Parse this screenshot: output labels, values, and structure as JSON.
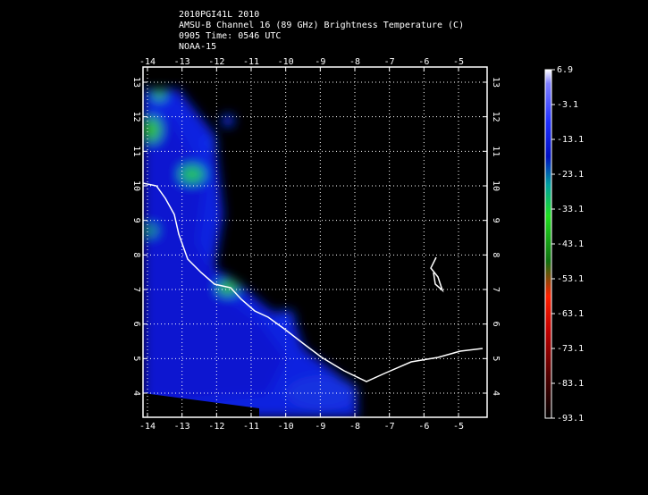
{
  "header": {
    "lines": [
      "2010PGI41L 2010",
      "AMSU-B Channel 16 (89 GHz) Brightness Temperature (C)",
      "0905 Time: 0546 UTC",
      "NOAA-15"
    ]
  },
  "map": {
    "x_labels": [
      -14,
      -13,
      -12,
      -11,
      -10,
      -9,
      -8,
      -7,
      -6,
      -5
    ],
    "y_labels": [
      4,
      5,
      6,
      7,
      8,
      9,
      10,
      11,
      12,
      13
    ]
  },
  "colorbar": {
    "labels": [
      6.9,
      -3.1,
      -13.1,
      -23.1,
      -33.1,
      -43.1,
      -53.1,
      -63.1,
      -73.1,
      -83.1,
      -93.1
    ]
  }
}
